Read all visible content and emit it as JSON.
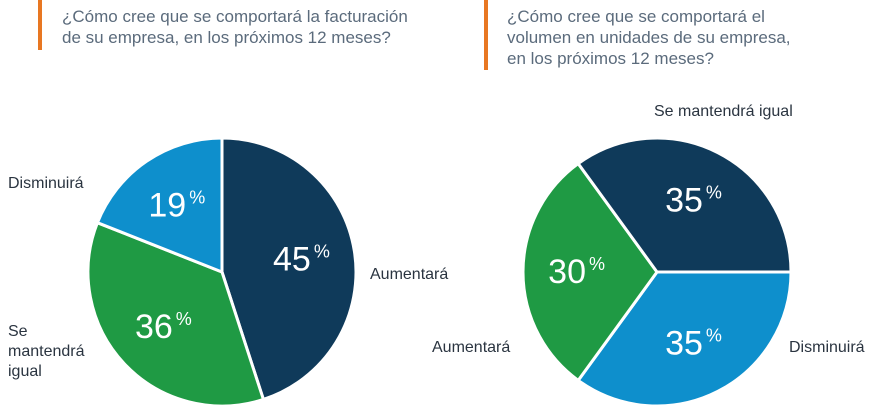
{
  "colors": {
    "dark_blue": "#0f3a5a",
    "light_blue": "#0e8fcc",
    "green": "#1f9a44",
    "accent": "#e87722"
  },
  "chart_data": [
    {
      "type": "pie",
      "title": "¿Cómo cree que se comportará la facturación de su empresa, en los próximos 12 meses?",
      "title_lines": [
        "¿Cómo cree que se comportará la facturación",
        "de su empresa, en los próximos 12 meses?"
      ],
      "categories": [
        "Aumentará",
        "Se mantendrá igual",
        "Disminuirá"
      ],
      "values": [
        45,
        36,
        19
      ],
      "value_labels": [
        "45",
        "36",
        "19"
      ],
      "unit": "%",
      "category_label_lines": [
        [
          "Aumentará"
        ],
        [
          "Se",
          "mantendrá",
          "igual"
        ],
        [
          "Disminuirá"
        ]
      ],
      "colors": [
        "#0f3a5a",
        "#1f9a44",
        "#0e8fcc"
      ]
    },
    {
      "type": "pie",
      "title": "¿Cómo cree que se comportará el volumen en unidades de su empresa, en los próximos 12 meses?",
      "title_lines": [
        "¿Cómo cree que se comportará el",
        "volumen en unidades de su empresa,",
        "en los próximos 12 meses?"
      ],
      "categories": [
        "Disminuirá",
        "Aumentará",
        "Se mantendrá igual"
      ],
      "values": [
        35,
        30,
        35
      ],
      "value_labels": [
        "35",
        "30",
        "35"
      ],
      "unit": "%",
      "category_label_lines": [
        [
          "Disminuirá"
        ],
        [
          "Aumentará"
        ],
        [
          "Se mantendrá igual"
        ]
      ],
      "colors": [
        "#0e8fcc",
        "#1f9a44",
        "#0f3a5a"
      ]
    }
  ]
}
